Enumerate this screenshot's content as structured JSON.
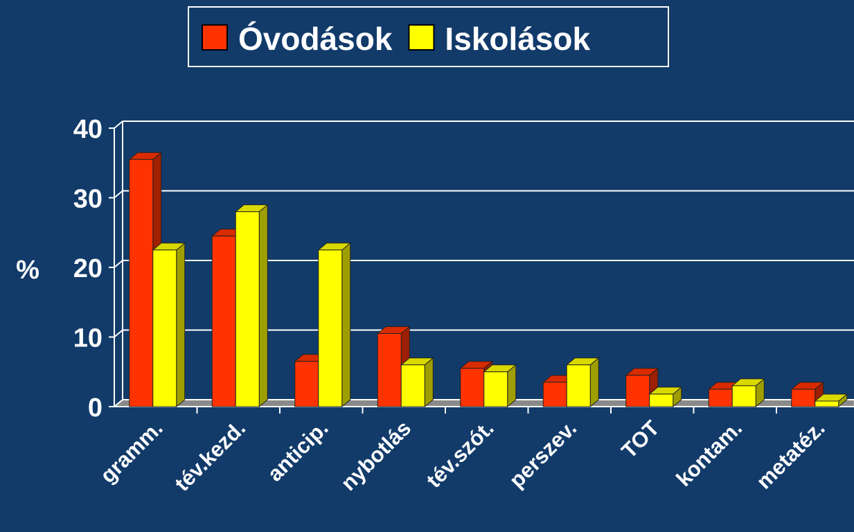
{
  "chart_data": {
    "type": "bar3d",
    "categories": [
      "gramm.",
      "tév.kezd.",
      "anticip.",
      "nybotlás",
      "tév.szót.",
      "perszev.",
      "TOT",
      "kontam.",
      "metatéz."
    ],
    "series": [
      {
        "name": "Óvodások",
        "color": "#ff3300",
        "values": [
          35.5,
          24.5,
          6.5,
          10.5,
          5.5,
          3.5,
          4.5,
          2.5,
          2.5
        ]
      },
      {
        "name": "Iskolások",
        "color": "#ffff00",
        "values": [
          22.5,
          28,
          22.5,
          6,
          5,
          6,
          1.8,
          3,
          0.8
        ]
      }
    ],
    "ylabel": "%",
    "ylim": [
      0,
      40
    ],
    "yticks": [
      0,
      10,
      20,
      30,
      40
    ],
    "grid": true,
    "legend": "top"
  }
}
